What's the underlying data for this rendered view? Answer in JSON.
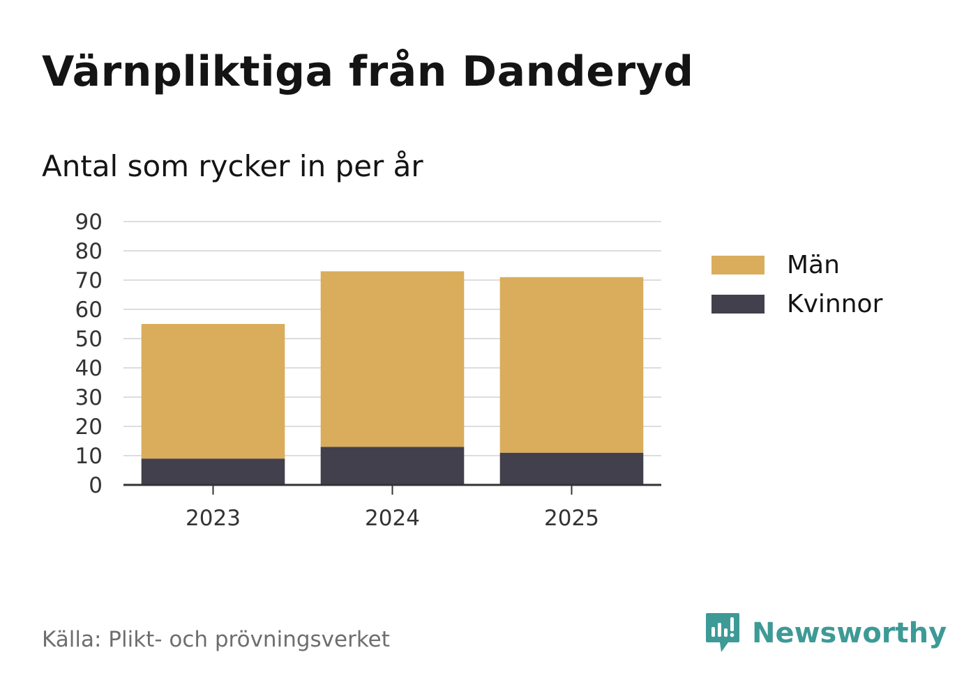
{
  "header": {
    "title": "Värnpliktiga från Danderyd",
    "subtitle": "Antal som rycker in per år"
  },
  "chart_data": {
    "type": "bar",
    "stacked": true,
    "categories": [
      "2023",
      "2024",
      "2025"
    ],
    "series": [
      {
        "name": "Kvinnor",
        "values": [
          9,
          13,
          11
        ],
        "color": "#43404d"
      },
      {
        "name": "Män",
        "values": [
          46,
          60,
          60
        ],
        "color": "#d9ad5b"
      }
    ],
    "ylim": [
      0,
      90
    ],
    "yticks": [
      0,
      10,
      20,
      30,
      40,
      50,
      60,
      70,
      80,
      90
    ],
    "grid": true,
    "legend_position": "right",
    "legend_order": [
      "Män",
      "Kvinnor"
    ]
  },
  "footer": {
    "source": "Källa: Plikt- och prövningsverket",
    "brand": "Newsworthy",
    "brand_icon": "newsworthy-logo-icon",
    "brand_color": "#3d9a96"
  }
}
